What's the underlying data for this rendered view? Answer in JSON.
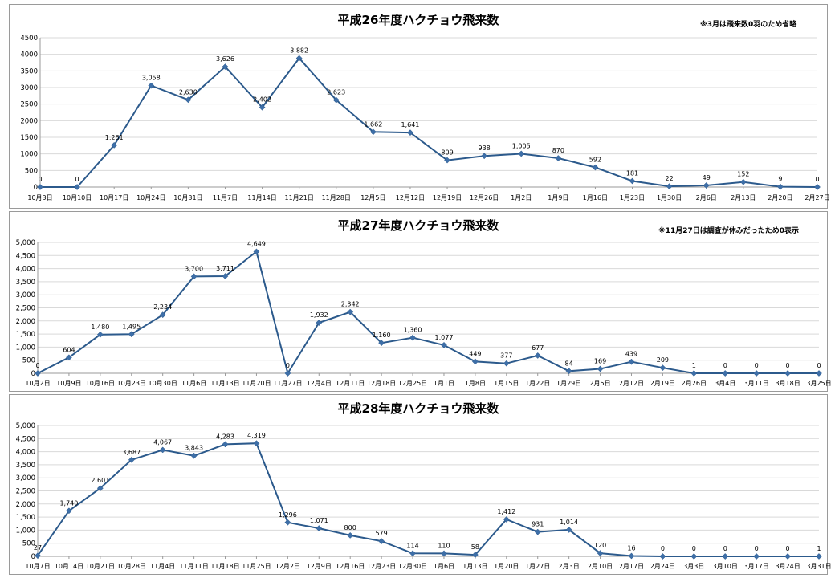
{
  "colors": {
    "line": "#2c5a8c",
    "marker": "#3e6fa8",
    "grid": "#d9d9d9",
    "axis": "#9a9a9a"
  },
  "chart_data": [
    {
      "type": "line",
      "title": "平成26年度ハクチョウ飛来数",
      "note": "※3月は飛来数0羽のため省略",
      "ylim": [
        0,
        4500
      ],
      "yticks": [
        "0",
        "500",
        "1000",
        "1500",
        "2000",
        "2500",
        "3000",
        "3500",
        "4000",
        "4500"
      ],
      "grid": true,
      "categories": [
        "10月3日",
        "10月10日",
        "10月17日",
        "10月24日",
        "10月31日",
        "11月7日",
        "11月14日",
        "11月21日",
        "11月28日",
        "12月5日",
        "12月12日",
        "12月19日",
        "12月26日",
        "1月2日",
        "1月9日",
        "1月16日",
        "1月23日",
        "1月30日",
        "2月6日",
        "2月13日",
        "2月20日",
        "2月27日"
      ],
      "values": [
        0,
        0,
        1261,
        3058,
        2630,
        3626,
        2402,
        3882,
        2623,
        1662,
        1641,
        809,
        938,
        1005,
        870,
        592,
        181,
        22,
        49,
        152,
        9,
        0
      ],
      "labels": [
        "0",
        "0",
        "1,261",
        "3,058",
        "2,630",
        "3,626",
        "2,402",
        "3,882",
        "2,623",
        "1,662",
        "1,641",
        "809",
        "938",
        "1,005",
        "870",
        "592",
        "181",
        "22",
        "49",
        "152",
        "9",
        "0"
      ]
    },
    {
      "type": "line",
      "title": "平成27年度ハクチョウ飛来数",
      "note": "※11月27日は調査が休みだったため0表示",
      "ylim": [
        0,
        5000
      ],
      "yticks": [
        "0",
        "500",
        "1,000",
        "1,500",
        "2,000",
        "2,500",
        "3,000",
        "3,500",
        "4,000",
        "4,500",
        "5,000"
      ],
      "grid": true,
      "categories": [
        "10月2日",
        "10月9日",
        "10月16日",
        "10月23日",
        "10月30日",
        "11月6日",
        "11月13日",
        "11月20日",
        "11月27日",
        "12月4日",
        "12月11日",
        "12月18日",
        "12月25日",
        "1月1日",
        "1月8日",
        "1月15日",
        "1月22日",
        "1月29日",
        "2月5日",
        "2月12日",
        "2月19日",
        "2月26日",
        "3月4日",
        "3月11日",
        "3月18日",
        "3月25日"
      ],
      "values": [
        0,
        604,
        1480,
        1495,
        2234,
        3700,
        3711,
        4649,
        0,
        1932,
        2342,
        1160,
        1360,
        1077,
        449,
        377,
        677,
        84,
        169,
        439,
        209,
        1,
        0,
        0,
        0,
        0
      ],
      "labels": [
        "0",
        "604",
        "1,480",
        "1,495",
        "2,234",
        "3,700",
        "3,711",
        "4,649",
        "0",
        "1,932",
        "2,342",
        "1,160",
        "1,360",
        "1,077",
        "449",
        "377",
        "677",
        "84",
        "169",
        "439",
        "209",
        "1",
        "0",
        "0",
        "0",
        "0"
      ]
    },
    {
      "type": "line",
      "title": "平成28年度ハクチョウ飛来数",
      "note": "",
      "ylim": [
        0,
        5000
      ],
      "yticks": [
        "0",
        "500",
        "1,000",
        "1,500",
        "2,000",
        "2,500",
        "3,000",
        "3,500",
        "4,000",
        "4,500",
        "5,000"
      ],
      "grid": true,
      "categories": [
        "10月7日",
        "10月14日",
        "10月21日",
        "10月28日",
        "11月4日",
        "11月11日",
        "11月18日",
        "11月25日",
        "12月2日",
        "12月9日",
        "12月16日",
        "12月23日",
        "12月30日",
        "1月6日",
        "1月13日",
        "1月20日",
        "1月27日",
        "2月3日",
        "2月10日",
        "2月17日",
        "2月24日",
        "3月3日",
        "3月10日",
        "3月17日",
        "3月24日",
        "3月31日"
      ],
      "values": [
        27,
        1740,
        2601,
        3687,
        4067,
        3843,
        4283,
        4319,
        1296,
        1071,
        800,
        579,
        114,
        110,
        58,
        1412,
        931,
        1014,
        120,
        16,
        0,
        0,
        0,
        0,
        0,
        1
      ],
      "labels": [
        "27",
        "1,740",
        "2,601",
        "3,687",
        "4,067",
        "3,843",
        "4,283",
        "4,319",
        "1,296",
        "1,071",
        "800",
        "579",
        "114",
        "110",
        "58",
        "1,412",
        "931",
        "1,014",
        "120",
        "16",
        "0",
        "0",
        "0",
        "0",
        "0",
        "1"
      ]
    }
  ]
}
